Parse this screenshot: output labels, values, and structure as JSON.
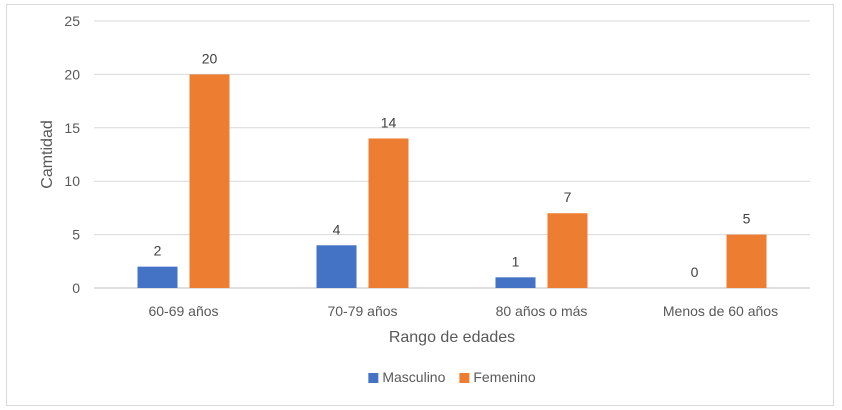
{
  "chart_data": {
    "type": "bar",
    "title": "",
    "xlabel": "Rango de edades",
    "ylabel": "Camtidad",
    "categories": [
      "60-69 años",
      "70-79 años",
      "80 años o más",
      "Menos de 60 años"
    ],
    "series": [
      {
        "name": "Masculino",
        "values": [
          2,
          4,
          1,
          0
        ],
        "color": "#4472C4"
      },
      {
        "name": "Femenino",
        "values": [
          20,
          14,
          7,
          5
        ],
        "color": "#ED7D31"
      }
    ],
    "ylim": [
      0,
      25
    ],
    "yticks": [
      0,
      5,
      10,
      15,
      20,
      25
    ],
    "grid": true,
    "legend_position": "bottom",
    "data_labels": true
  }
}
